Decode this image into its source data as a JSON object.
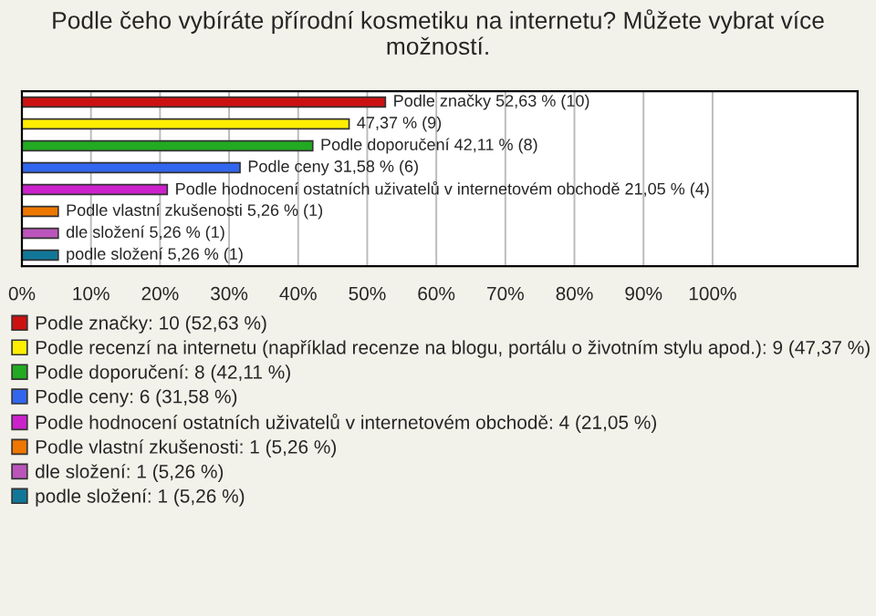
{
  "chart_data": {
    "type": "bar",
    "orientation": "horizontal",
    "title": "Podle čeho vybíráte přírodní kosmetiku na internetu? Můžete vybrat více možností.",
    "categories": [
      null,
      null,
      null,
      null,
      null,
      null,
      null,
      null
    ],
    "series": [
      {
        "name": "Podle značky: 10 (52,63 %)",
        "color": "#cc1111",
        "values": [
          52.63,
          null,
          null,
          null,
          null,
          null,
          null,
          null
        ],
        "value_labels": [
          "Podle značky 52,63 % (10)",
          null,
          null,
          null,
          null,
          null,
          null,
          null
        ]
      },
      {
        "name": "Podle recenzí na internetu (například recenze na blogu, portálu o životním stylu apod.): 9 (47,37 %)",
        "color": "#ffee00",
        "values": [
          null,
          47.37,
          null,
          null,
          null,
          null,
          null,
          null
        ],
        "value_labels": [
          null,
          "47,37 % (9)",
          null,
          null,
          null,
          null,
          null,
          null
        ]
      },
      {
        "name": "Podle doporučení: 8 (42,11 %)",
        "color": "#22aa22",
        "values": [
          null,
          null,
          42.11,
          null,
          null,
          null,
          null,
          null
        ],
        "value_labels": [
          null,
          null,
          "Podle doporučení 42,11 % (8)",
          null,
          null,
          null,
          null,
          null
        ]
      },
      {
        "name": "Podle ceny: 6 (31,58 %)",
        "color": "#3366ee",
        "values": [
          null,
          null,
          null,
          31.58,
          null,
          null,
          null,
          null
        ],
        "value_labels": [
          null,
          null,
          null,
          "Podle ceny 31,58 % (6)",
          null,
          null,
          null,
          null
        ]
      },
      {
        "name": "Podle hodnocení ostatních uživatelů v internetovém obchodě: 4 (21,05 %)",
        "color": "#cc22cc",
        "values": [
          null,
          null,
          null,
          null,
          21.05,
          null,
          null,
          null
        ],
        "value_labels": [
          null,
          null,
          null,
          null,
          "Podle hodnocení ostatních uživatelů v internetovém obchodě 21,05 % (4)",
          null,
          null,
          null
        ]
      },
      {
        "name": "Podle vlastní zkušenosti: 1 (5,26 %)",
        "color": "#ee7700",
        "values": [
          null,
          null,
          null,
          null,
          null,
          5.26,
          null,
          null
        ],
        "value_labels": [
          null,
          null,
          null,
          null,
          null,
          "Podle vlastní zkušenosti 5,26 % (1)",
          null,
          null
        ]
      },
      {
        "name": "dle složení: 1 (5,26 %)",
        "color": "#bb55bb",
        "values": [
          null,
          null,
          null,
          null,
          null,
          null,
          5.26,
          null
        ],
        "value_labels": [
          null,
          null,
          null,
          null,
          null,
          null,
          "dle složení 5,26 % (1)",
          null
        ]
      },
      {
        "name": "podle složení: 1 (5,26 %)",
        "color": "#117799",
        "values": [
          null,
          null,
          null,
          null,
          null,
          null,
          null,
          5.26
        ],
        "value_labels": [
          null,
          null,
          null,
          null,
          null,
          null,
          null,
          "podle složení 5,26 % (1)"
        ]
      }
    ],
    "xlim": [
      0,
      121
    ],
    "xticks": [
      {
        "value": 0,
        "label": "0%"
      },
      {
        "value": 10,
        "label": "10%"
      },
      {
        "value": 20,
        "label": "20%"
      },
      {
        "value": 30,
        "label": "30%"
      },
      {
        "value": 40,
        "label": "40%"
      },
      {
        "value": 50,
        "label": "50%"
      },
      {
        "value": 60,
        "label": "60%"
      },
      {
        "value": 70,
        "label": "70%"
      },
      {
        "value": 80,
        "label": "80%"
      },
      {
        "value": 90,
        "label": "90%"
      },
      {
        "value": 100,
        "label": "100%"
      }
    ],
    "grid": "x",
    "legend": "bottom",
    "tick_labels": "x"
  }
}
